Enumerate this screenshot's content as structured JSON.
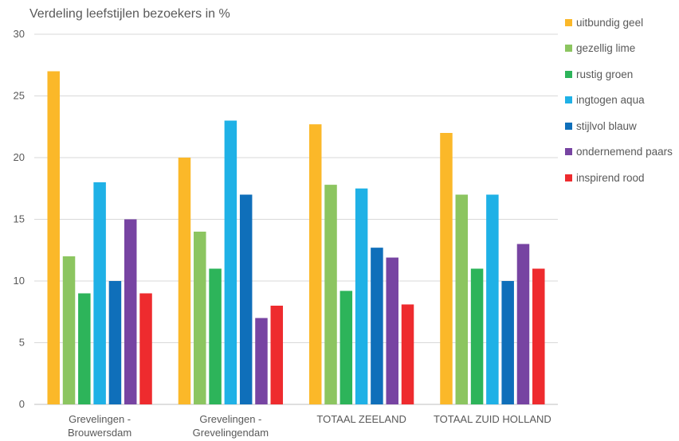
{
  "chart_data": {
    "type": "bar",
    "title": "Verdeling leefstijlen bezoekers in %",
    "xlabel": "",
    "ylabel": "",
    "ylim": [
      0,
      30
    ],
    "yticks": [
      0,
      5,
      10,
      15,
      20,
      25,
      30
    ],
    "grid": true,
    "legend_position": "right",
    "categories": [
      [
        "Grevelingen -",
        "Brouwersdam"
      ],
      [
        "Grevelingen -",
        "Grevelingendam"
      ],
      [
        "TOTAAL ZEELAND"
      ],
      [
        "TOTAAL ZUID HOLLAND"
      ]
    ],
    "series": [
      {
        "name": "uitbundig geel",
        "color": "#FBB829",
        "values": [
          27,
          20,
          22.7,
          22
        ]
      },
      {
        "name": "gezellig lime",
        "color": "#8CC560",
        "values": [
          12,
          14,
          17.8,
          17
        ]
      },
      {
        "name": "rustig groen",
        "color": "#2DB45A",
        "values": [
          9,
          11,
          9.2,
          11
        ]
      },
      {
        "name": "ingtogen aqua",
        "color": "#1FB1E6",
        "values": [
          18,
          23,
          17.5,
          17
        ]
      },
      {
        "name": "stijlvol blauw",
        "color": "#0F6FBA",
        "values": [
          10,
          17,
          12.7,
          10
        ]
      },
      {
        "name": "ondernemend paars",
        "color": "#7744A2",
        "values": [
          15,
          7,
          11.9,
          13
        ]
      },
      {
        "name": "inspirend rood",
        "color": "#EE2B2E",
        "values": [
          9,
          8,
          8.1,
          11
        ]
      }
    ]
  }
}
